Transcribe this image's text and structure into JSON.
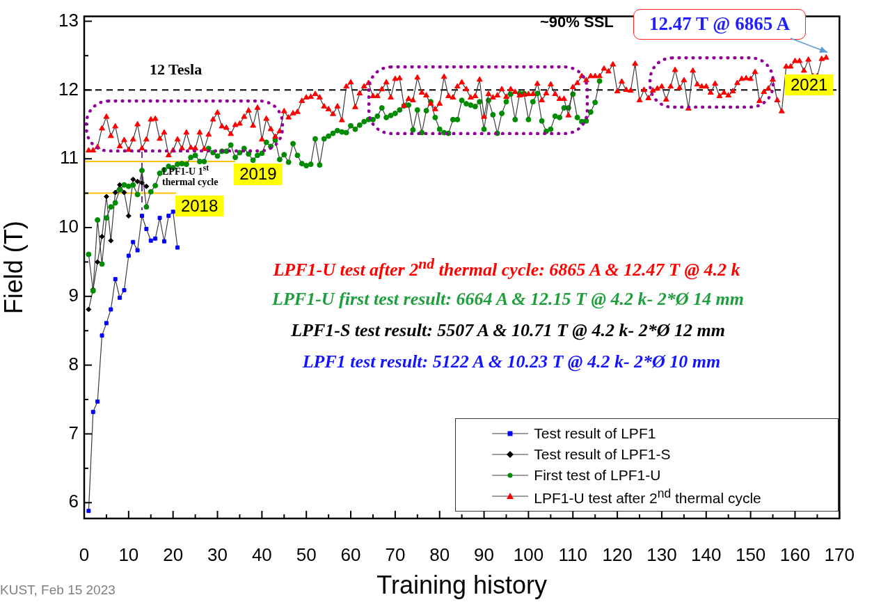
{
  "chart_data": {
    "type": "line",
    "xlabel": "Training history",
    "ylabel": "Field (T)",
    "series": [
      {
        "name": "Test result of LPF1",
        "color": "#0000ff",
        "marker": "square",
        "x": [
          1,
          2,
          3,
          4,
          5,
          6,
          7,
          8,
          9,
          10,
          11,
          12,
          13,
          14,
          15,
          16,
          17,
          18,
          19,
          20,
          21
        ],
        "values": [
          5.88,
          7.32,
          7.47,
          8.43,
          8.61,
          8.81,
          9.25,
          8.98,
          9.09,
          9.59,
          9.79,
          9.67,
          10.17,
          9.98,
          9.81,
          9.84,
          10.14,
          9.8,
          10.17,
          10.23,
          9.71
        ]
      },
      {
        "name": "Test result of LPF1-S",
        "color": "#000000",
        "marker": "diamond",
        "x": [
          1,
          2,
          3,
          4,
          5,
          6,
          7,
          8,
          9,
          10,
          11,
          12,
          13,
          14
        ],
        "values": [
          8.81,
          9.1,
          9.5,
          9.87,
          10.45,
          9.81,
          10.51,
          10.62,
          10.51,
          10.17,
          10.7,
          10.67,
          10.65,
          10.6
        ]
      },
      {
        "name": "First test of LPF1-U",
        "color": "#008c00",
        "marker": "circle",
        "x": [
          1,
          2,
          3,
          4,
          5,
          6,
          7,
          8,
          9,
          10,
          11,
          12,
          13,
          14,
          15,
          16,
          17,
          18,
          19,
          20,
          21,
          22,
          23,
          24,
          25,
          26,
          27,
          28,
          29,
          30,
          31,
          32,
          33,
          34,
          35,
          36,
          37,
          38,
          39,
          40,
          41,
          42,
          43,
          44,
          45,
          46,
          47,
          48,
          49,
          50,
          51,
          52,
          53,
          54,
          55,
          56,
          57,
          58,
          59,
          60,
          61,
          62,
          63,
          64,
          65,
          66,
          67,
          68,
          69,
          70,
          71,
          72,
          73,
          74,
          75,
          76,
          77,
          78,
          79,
          80,
          81,
          82,
          83,
          84,
          85,
          86,
          87,
          88,
          89,
          90,
          91,
          92,
          93,
          94,
          95,
          96,
          97,
          98,
          99,
          100,
          101,
          102,
          103,
          104,
          105,
          106,
          107,
          108,
          109,
          110,
          111,
          112,
          113,
          114,
          115,
          116
        ],
        "values": [
          9.61,
          9.08,
          10.11,
          9.47,
          10.14,
          10.3,
          10.36,
          10.55,
          10.62,
          10.6,
          10.62,
          10.48,
          10.83,
          10.3,
          10.52,
          10.61,
          10.79,
          10.84,
          10.89,
          10.87,
          10.92,
          10.93,
          10.92,
          11.02,
          11.05,
          10.96,
          10.96,
          11.15,
          11.09,
          11.04,
          11.11,
          11.11,
          11.2,
          11.02,
          11.09,
          11.15,
          11.07,
          10.98,
          11.05,
          11.08,
          11.24,
          11.18,
          11.27,
          10.99,
          11.06,
          10.95,
          11.22,
          11.05,
          10.93,
          10.9,
          10.92,
          11.29,
          10.91,
          11.29,
          11.33,
          11.37,
          11.41,
          11.39,
          11.38,
          11.48,
          11.43,
          11.49,
          11.54,
          11.57,
          11.57,
          11.62,
          11.74,
          11.6,
          11.63,
          11.66,
          11.71,
          11.77,
          11.78,
          11.42,
          11.71,
          11.38,
          11.7,
          11.83,
          11.6,
          11.43,
          11.38,
          11.37,
          11.57,
          11.57,
          11.85,
          11.8,
          11.78,
          11.76,
          11.83,
          11.43,
          11.85,
          11.64,
          11.37,
          11.66,
          11.83,
          11.94,
          11.57,
          11.95,
          11.95,
          11.57,
          11.83,
          11.95,
          11.55,
          11.4,
          11.43,
          11.62,
          11.6,
          11.74,
          11.74,
          11.94,
          11.6,
          11.54,
          11.55,
          11.68,
          11.82,
          12.13
        ]
      },
      {
        "name": "LPF1-U test after 2$^{nd}$  thermal cycle",
        "color": "#ff0000",
        "marker": "triangle",
        "x": [
          1,
          2,
          3,
          4,
          5,
          6,
          7,
          8,
          9,
          10,
          11,
          12,
          13,
          14,
          15,
          16,
          17,
          18,
          19,
          20,
          21,
          22,
          23,
          24,
          25,
          26,
          27,
          28,
          29,
          30,
          31,
          32,
          33,
          34,
          35,
          36,
          37,
          38,
          39,
          40,
          41,
          42,
          43,
          44,
          45,
          46,
          47,
          48,
          49,
          50,
          51,
          52,
          53,
          54,
          55,
          56,
          57,
          58,
          59,
          60,
          61,
          62,
          63,
          64,
          65,
          66,
          67,
          68,
          69,
          70,
          71,
          72,
          73,
          74,
          75,
          76,
          77,
          78,
          79,
          80,
          81,
          82,
          83,
          84,
          85,
          86,
          87,
          88,
          89,
          90,
          91,
          92,
          93,
          94,
          95,
          96,
          97,
          98,
          99,
          100,
          101,
          102,
          103,
          104,
          105,
          106,
          107,
          108,
          109,
          110,
          111,
          112,
          113,
          114,
          115,
          116,
          117,
          118,
          119,
          120,
          121,
          122,
          123,
          124,
          125,
          126,
          127,
          128,
          129,
          130,
          131,
          132,
          133,
          134,
          135,
          136,
          137,
          138,
          139,
          140,
          141,
          142,
          143,
          144,
          145,
          146,
          147,
          148,
          149,
          150,
          151,
          152,
          153,
          154,
          155,
          156,
          157,
          158,
          159,
          160,
          161,
          162,
          163,
          164,
          165,
          166,
          167
        ],
        "values": [
          11.12,
          11.12,
          11.17,
          11.44,
          11.61,
          11.33,
          11.47,
          11.18,
          11.27,
          11.13,
          11.28,
          11.5,
          11.15,
          11.28,
          11.57,
          11.58,
          11.29,
          11.38,
          11.05,
          11.12,
          11.28,
          11.15,
          11.38,
          11.16,
          11.15,
          11.38,
          11.14,
          11.35,
          11.57,
          11.67,
          11.47,
          11.45,
          11.36,
          11.49,
          11.51,
          11.61,
          11.7,
          11.48,
          11.74,
          11.28,
          11.58,
          11.43,
          11.32,
          11.4,
          11.69,
          11.6,
          11.66,
          11.68,
          11.84,
          11.89,
          11.9,
          11.94,
          11.89,
          11.76,
          11.72,
          11.65,
          11.76,
          11.56,
          12.05,
          12.11,
          11.75,
          11.95,
          12.05,
          12.1,
          11.91,
          11.91,
          12.01,
          12.11,
          11.89,
          12.16,
          12.17,
          11.77,
          11.87,
          11.85,
          12.18,
          11.96,
          11.92,
          11.8,
          11.72,
          11.8,
          12.19,
          11.91,
          11.89,
          12.05,
          12.11,
          12.01,
          11.89,
          11.91,
          12.15,
          11.61,
          11.94,
          11.89,
          11.92,
          12.01,
          11.9,
          12.01,
          11.97,
          11.92,
          11.93,
          11.94,
          11.94,
          12.09,
          11.85,
          11.95,
          12.08,
          11.94,
          11.87,
          11.87,
          11.63,
          12.04,
          12.1,
          12.2,
          12.14,
          12.2,
          12.2,
          12.2,
          12.31,
          12.27,
          12.37,
          11.98,
          12.12,
          12,
          11.99,
          12.38,
          11.85,
          12,
          11.88,
          11.99,
          12.02,
          12.05,
          11.86,
          12.05,
          12.29,
          12.03,
          12.14,
          11.73,
          12.28,
          12.08,
          12.05,
          12.05,
          11.96,
          12.09,
          11.91,
          11.96,
          11.92,
          11.98,
          12.1,
          12.16,
          12.17,
          12.16,
          12.26,
          11.84,
          11.97,
          12.02,
          12.15,
          11.85,
          11.69,
          12.34,
          12.34,
          12.42,
          12.42,
          12.28,
          12.44,
          12.2,
          12.2,
          12.45,
          12.47
        ]
      }
    ],
    "xlim": [
      0,
      170
    ],
    "ylim": [
      5.77,
      13.07
    ],
    "xticks": [
      0,
      {
        "value": 5,
        "label": null
      },
      10,
      {
        "value": 15,
        "label": null
      },
      20,
      {
        "value": 25,
        "label": null
      },
      30,
      {
        "value": 35,
        "label": null
      },
      40,
      {
        "value": 45,
        "label": null
      },
      50,
      {
        "value": 55,
        "label": null
      },
      60,
      {
        "value": 65,
        "label": null
      },
      70,
      {
        "value": 75,
        "label": null
      },
      80,
      {
        "value": 85,
        "label": null
      },
      90,
      {
        "value": 95,
        "label": null
      },
      100,
      {
        "value": 105,
        "label": null
      },
      110,
      {
        "value": 115,
        "label": null
      },
      120,
      {
        "value": 125,
        "label": null
      },
      130,
      {
        "value": 135,
        "label": null
      },
      140,
      {
        "value": 145,
        "label": null
      },
      150,
      {
        "value": 155,
        "label": null
      },
      160,
      {
        "value": 165,
        "label": null
      },
      170
    ],
    "yticks": [
      6,
      {
        "value": 6.5,
        "label": null
      },
      7,
      {
        "value": 7.5,
        "label": null
      },
      8,
      {
        "value": 8.5,
        "label": null
      },
      9,
      {
        "value": 9.5,
        "label": null
      },
      10,
      {
        "value": 10.5,
        "label": null
      },
      11,
      {
        "value": 11.5,
        "label": null
      },
      12,
      {
        "value": 12.5,
        "label": null
      },
      13
    ],
    "legend": "bottom right",
    "ref_lines": [
      {
        "axis": "y",
        "value": 12,
        "label": "12 Tesla",
        "color": "#000000",
        "line_style": "dashed"
      },
      {
        "axis": "y",
        "value": 10.96,
        "color": "#ffc000"
      },
      {
        "axis": "y",
        "value": 10.5,
        "color": "#ffc000"
      },
      {
        "axis": "x",
        "value": 13,
        "label": "LPF1-U 1$^{st}$ thermal cycle",
        "color": "#7030a0",
        "line_style": "dashed"
      }
    ],
    "annotations": [
      "~90% SSL",
      {
        "text": "12.47 T @ 6865 A",
        "x": 167,
        "y": 12.47
      },
      "2021",
      {
        "text": "2019",
        "x": 33.7,
        "y": 10.96
      },
      {
        "text": "2018",
        "x": 20.5,
        "y": 10.5
      },
      "LPF1-U test after 2$^{nd}$ thermal cycle: 6865 A & 12.47 T @ 4.2 k",
      "LPF1-U first test result: 6664 A & 12.15 T @ 4.2 k- 2*Ø 14 mm",
      "LPF1-S test result: 5507 A & 10.71 T @ 4.2 k- 2*Ø 12 mm",
      "LPF1 test result: 5122 A & 10.23 T @ 4.2 k- 2*Ø 10 mm",
      "KUST, Feb 15 2023"
    ]
  }
}
